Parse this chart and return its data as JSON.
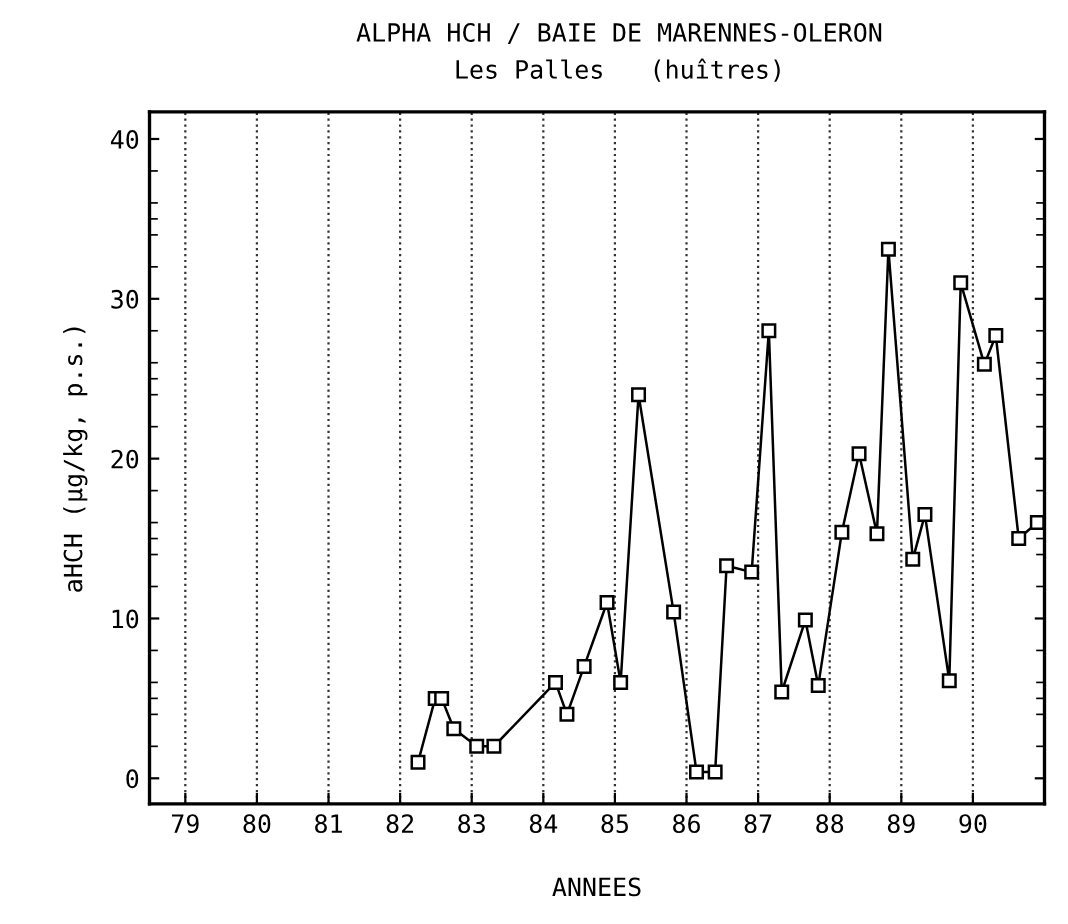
{
  "chart_data": {
    "type": "line",
    "title": "ALPHA HCH / BAIE DE MARENNES-OLERON",
    "subtitle": "Les Palles   (huîtres)",
    "xlabel": "ANNEES",
    "ylabel": "aHCH (µg/kg, p.s.)",
    "x": [
      82.25,
      82.49,
      82.58,
      82.75,
      83.07,
      83.31,
      84.17,
      84.33,
      84.57,
      84.89,
      85.08,
      85.33,
      85.82,
      86.14,
      86.4,
      86.56,
      86.91,
      87.15,
      87.33,
      87.66,
      87.84,
      88.17,
      88.41,
      88.66,
      88.82,
      89.16,
      89.33,
      89.67,
      89.83,
      90.16,
      90.32,
      90.64,
      90.9
    ],
    "series": [
      {
        "color": "#000000",
        "values": [
          1.0,
          5.0,
          5.0,
          3.1,
          2.0,
          2.0,
          6.0,
          4.0,
          7.0,
          11.0,
          6.0,
          24.0,
          10.4,
          0.4,
          0.4,
          13.3,
          12.9,
          28.0,
          5.4,
          9.9,
          5.8,
          15.4,
          20.3,
          15.3,
          33.1,
          13.7,
          16.5,
          6.1,
          31.0,
          25.9,
          27.7,
          15.0,
          16.0
        ]
      }
    ],
    "xlim": [
      78.5,
      91.0
    ],
    "xticks": [
      79,
      80,
      81,
      82,
      83,
      84,
      85,
      86,
      87,
      88,
      89,
      90
    ],
    "ylim": [
      -1.6,
      41.7
    ],
    "yticks": [
      0,
      10,
      20,
      30,
      40
    ],
    "grid": "x",
    "marker": "square",
    "line_style": "solid",
    "legend": false
  }
}
